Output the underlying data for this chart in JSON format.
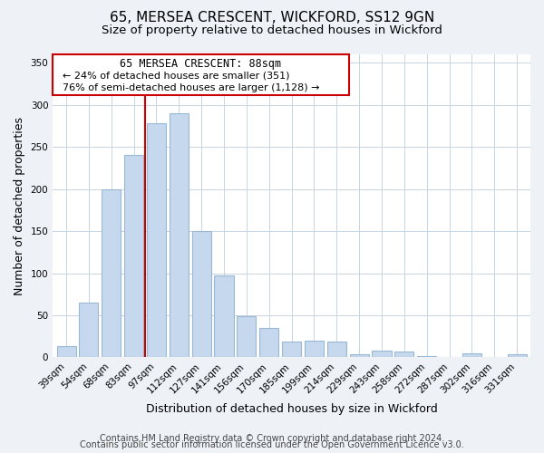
{
  "title": "65, MERSEA CRESCENT, WICKFORD, SS12 9GN",
  "subtitle": "Size of property relative to detached houses in Wickford",
  "xlabel": "Distribution of detached houses by size in Wickford",
  "ylabel": "Number of detached properties",
  "bar_labels": [
    "39sqm",
    "54sqm",
    "68sqm",
    "83sqm",
    "97sqm",
    "112sqm",
    "127sqm",
    "141sqm",
    "156sqm",
    "170sqm",
    "185sqm",
    "199sqm",
    "214sqm",
    "229sqm",
    "243sqm",
    "258sqm",
    "272sqm",
    "287sqm",
    "302sqm",
    "316sqm",
    "331sqm"
  ],
  "bar_values": [
    13,
    65,
    200,
    240,
    278,
    290,
    150,
    97,
    49,
    35,
    19,
    20,
    19,
    4,
    8,
    7,
    2,
    0,
    5,
    0,
    4
  ],
  "bar_color": "#c5d8ed",
  "bar_edge_color": "#9ab8d4",
  "vline_x": 3.5,
  "vline_color": "#cc0000",
  "ann_line1": "65 MERSEA CRESCENT: 88sqm",
  "ann_line2": "← 24% of detached houses are smaller (351)",
  "ann_line3": "76% of semi-detached houses are larger (1,128) →",
  "ylim": [
    0,
    360
  ],
  "yticks": [
    0,
    50,
    100,
    150,
    200,
    250,
    300,
    350
  ],
  "footer_line1": "Contains HM Land Registry data © Crown copyright and database right 2024.",
  "footer_line2": "Contains public sector information licensed under the Open Government Licence v3.0.",
  "background_color": "#eef2f7",
  "plot_bg_color": "#ffffff",
  "title_fontsize": 11,
  "subtitle_fontsize": 9.5,
  "axis_label_fontsize": 9,
  "tick_fontsize": 7.5,
  "footer_fontsize": 7
}
